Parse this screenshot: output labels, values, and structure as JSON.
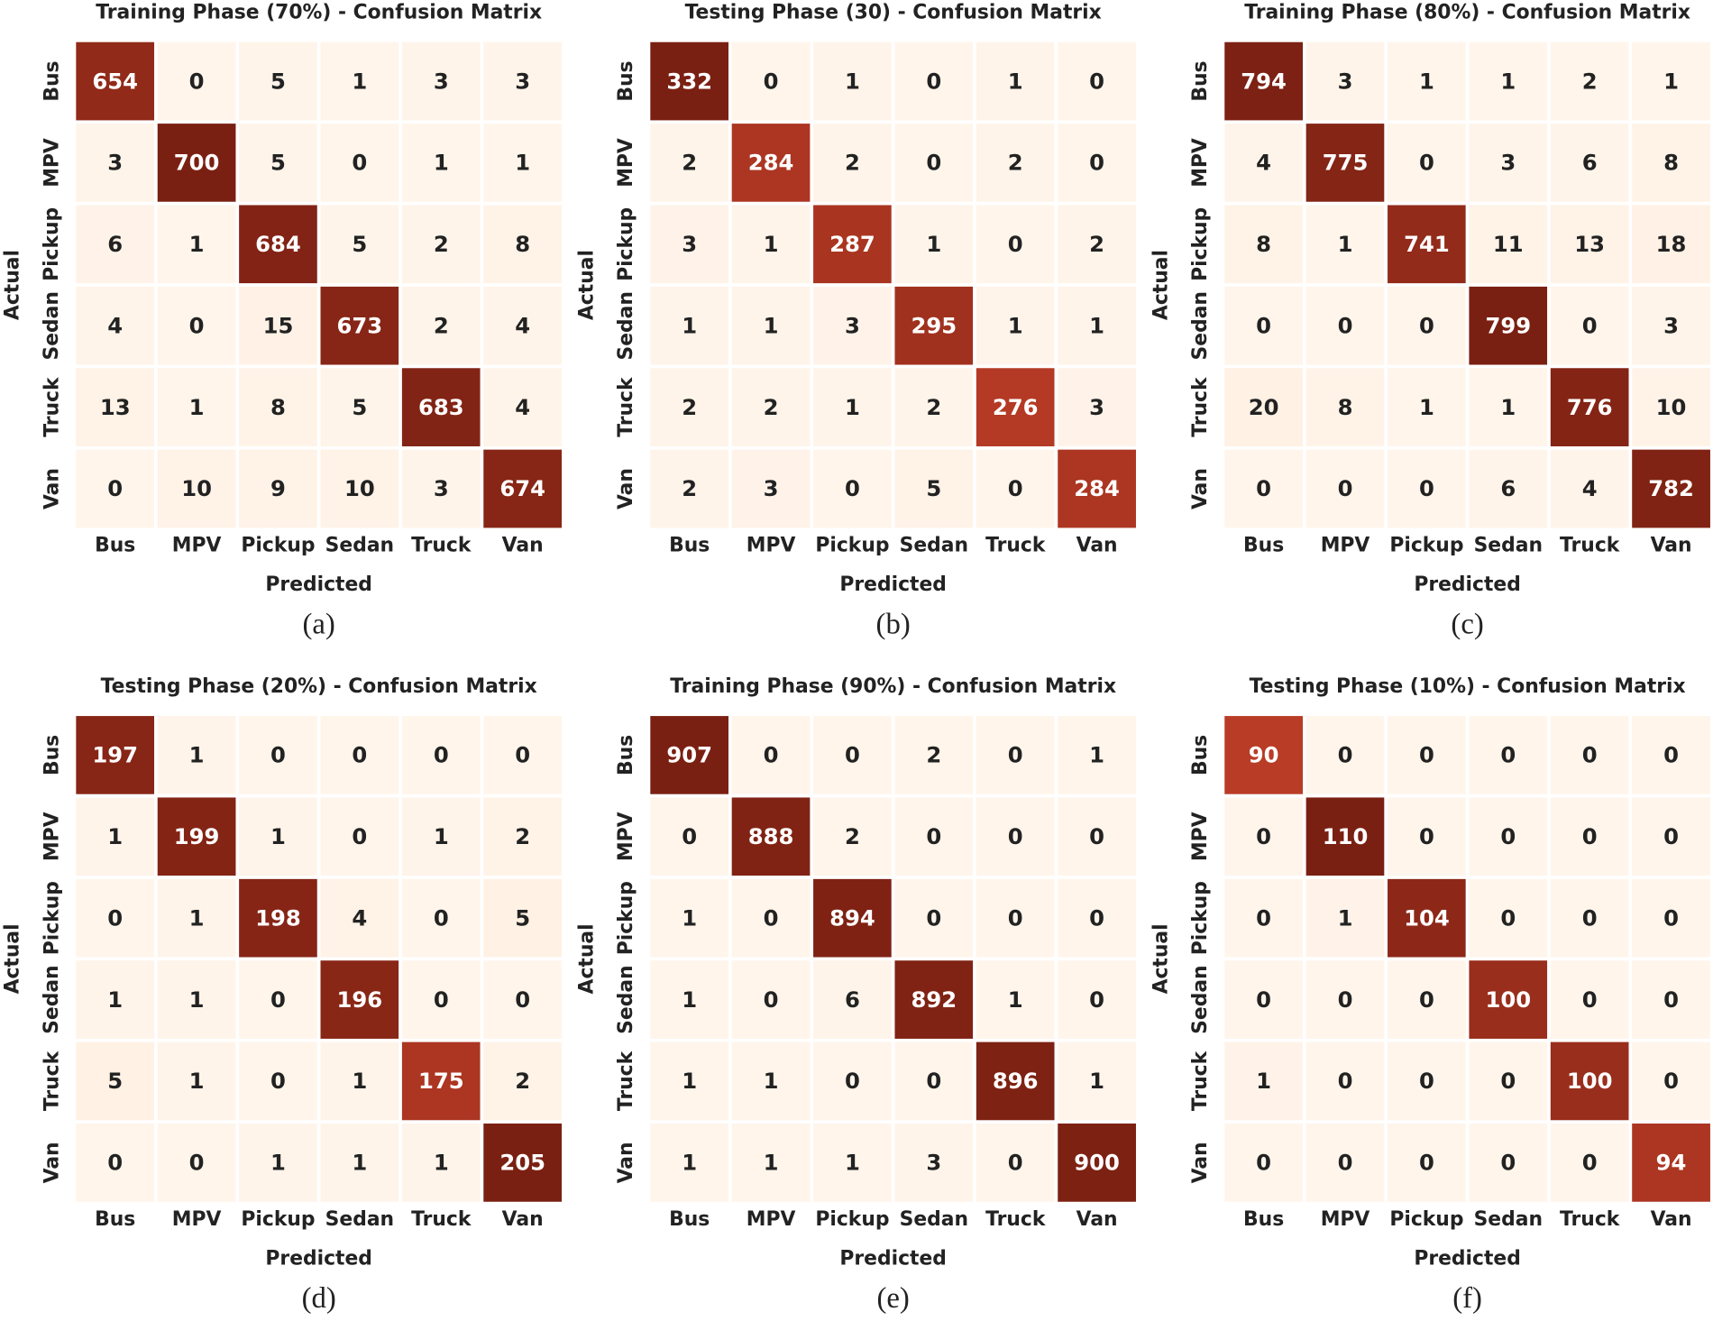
{
  "chart_data": [
    {
      "type": "heatmap",
      "title": "Training Phase (70%) - Confusion Matrix",
      "xlabel": "Predicted",
      "ylabel": "Actual",
      "caption": "(a)",
      "x_categories": [
        "Bus",
        "MPV",
        "Pickup",
        "Sedan",
        "Truck",
        "Van"
      ],
      "y_categories": [
        "Bus",
        "MPV",
        "Pickup",
        "Sedan",
        "Truck",
        "Van"
      ],
      "values": [
        [
          654,
          0,
          5,
          1,
          3,
          3
        ],
        [
          3,
          700,
          5,
          0,
          1,
          1
        ],
        [
          6,
          1,
          684,
          5,
          2,
          8
        ],
        [
          4,
          0,
          15,
          673,
          2,
          4
        ],
        [
          13,
          1,
          8,
          5,
          683,
          4
        ],
        [
          0,
          10,
          9,
          10,
          3,
          674
        ]
      ],
      "colormap": [
        "#fff5eb",
        "#fcc9a8",
        "#f08a60",
        "#d0462e",
        "#7a2012"
      ]
    },
    {
      "type": "heatmap",
      "title": "Testing Phase (30) - Confusion Matrix",
      "xlabel": "Predicted",
      "ylabel": "Actual",
      "caption": "(b)",
      "x_categories": [
        "Bus",
        "MPV",
        "Pickup",
        "Sedan",
        "Truck",
        "Van"
      ],
      "y_categories": [
        "Bus",
        "MPV",
        "Pickup",
        "Sedan",
        "Truck",
        "Van"
      ],
      "values": [
        [
          332,
          0,
          1,
          0,
          1,
          0
        ],
        [
          2,
          284,
          2,
          0,
          2,
          0
        ],
        [
          3,
          1,
          287,
          1,
          0,
          2
        ],
        [
          1,
          1,
          3,
          295,
          1,
          1
        ],
        [
          2,
          2,
          1,
          2,
          276,
          3
        ],
        [
          2,
          3,
          0,
          5,
          0,
          284
        ]
      ],
      "colormap": [
        "#fff5eb",
        "#fcc9a8",
        "#f08a60",
        "#d0462e",
        "#7a2012"
      ]
    },
    {
      "type": "heatmap",
      "title": "Training Phase (80%) - Confusion Matrix",
      "xlabel": "Predicted",
      "ylabel": "Actual",
      "caption": "(c)",
      "x_categories": [
        "Bus",
        "MPV",
        "Pickup",
        "Sedan",
        "Truck",
        "Van"
      ],
      "y_categories": [
        "Bus",
        "MPV",
        "Pickup",
        "Sedan",
        "Truck",
        "Van"
      ],
      "values": [
        [
          794,
          3,
          1,
          1,
          2,
          1
        ],
        [
          4,
          775,
          0,
          3,
          6,
          8
        ],
        [
          8,
          1,
          741,
          11,
          13,
          18
        ],
        [
          0,
          0,
          0,
          799,
          0,
          3
        ],
        [
          20,
          8,
          1,
          1,
          776,
          10
        ],
        [
          0,
          0,
          0,
          6,
          4,
          782
        ]
      ],
      "colormap": [
        "#fff5eb",
        "#fcc9a8",
        "#f08a60",
        "#d0462e",
        "#7a2012"
      ]
    },
    {
      "type": "heatmap",
      "title": "Testing Phase (20%) - Confusion Matrix",
      "xlabel": "Predicted",
      "ylabel": "Actual",
      "caption": "(d)",
      "x_categories": [
        "Bus",
        "MPV",
        "Pickup",
        "Sedan",
        "Truck",
        "Van"
      ],
      "y_categories": [
        "Bus",
        "MPV",
        "Pickup",
        "Sedan",
        "Truck",
        "Van"
      ],
      "values": [
        [
          197,
          1,
          0,
          0,
          0,
          0
        ],
        [
          1,
          199,
          1,
          0,
          1,
          2
        ],
        [
          0,
          1,
          198,
          4,
          0,
          5
        ],
        [
          1,
          1,
          0,
          196,
          0,
          0
        ],
        [
          5,
          1,
          0,
          1,
          175,
          2
        ],
        [
          0,
          0,
          1,
          1,
          1,
          205
        ]
      ],
      "colormap": [
        "#fff5eb",
        "#fcc9a8",
        "#f08a60",
        "#d0462e",
        "#7a2012"
      ]
    },
    {
      "type": "heatmap",
      "title": "Training Phase (90%) - Confusion Matrix",
      "xlabel": "Predicted",
      "ylabel": "Actual",
      "caption": "(e)",
      "x_categories": [
        "Bus",
        "MPV",
        "Pickup",
        "Sedan",
        "Truck",
        "Van"
      ],
      "y_categories": [
        "Bus",
        "MPV",
        "Pickup",
        "Sedan",
        "Truck",
        "Van"
      ],
      "values": [
        [
          907,
          0,
          0,
          2,
          0,
          1
        ],
        [
          0,
          888,
          2,
          0,
          0,
          0
        ],
        [
          1,
          0,
          894,
          0,
          0,
          0
        ],
        [
          1,
          0,
          6,
          892,
          1,
          0
        ],
        [
          1,
          1,
          0,
          0,
          896,
          1
        ],
        [
          1,
          1,
          1,
          3,
          0,
          900
        ]
      ],
      "colormap": [
        "#fff5eb",
        "#fcc9a8",
        "#f08a60",
        "#d0462e",
        "#7a2012"
      ]
    },
    {
      "type": "heatmap",
      "title": "Testing Phase (10%) - Confusion Matrix",
      "xlabel": "Predicted",
      "ylabel": "Actual",
      "caption": "(f)",
      "x_categories": [
        "Bus",
        "MPV",
        "Pickup",
        "Sedan",
        "Truck",
        "Van"
      ],
      "y_categories": [
        "Bus",
        "MPV",
        "Pickup",
        "Sedan",
        "Truck",
        "Van"
      ],
      "values": [
        [
          90,
          0,
          0,
          0,
          0,
          0
        ],
        [
          0,
          110,
          0,
          0,
          0,
          0
        ],
        [
          0,
          1,
          104,
          0,
          0,
          0
        ],
        [
          0,
          0,
          0,
          100,
          0,
          0
        ],
        [
          1,
          0,
          0,
          0,
          100,
          0
        ],
        [
          0,
          0,
          0,
          0,
          0,
          94
        ]
      ],
      "colormap": [
        "#fff5eb",
        "#fcc9a8",
        "#f08a60",
        "#d0462e",
        "#7a2012"
      ]
    }
  ]
}
